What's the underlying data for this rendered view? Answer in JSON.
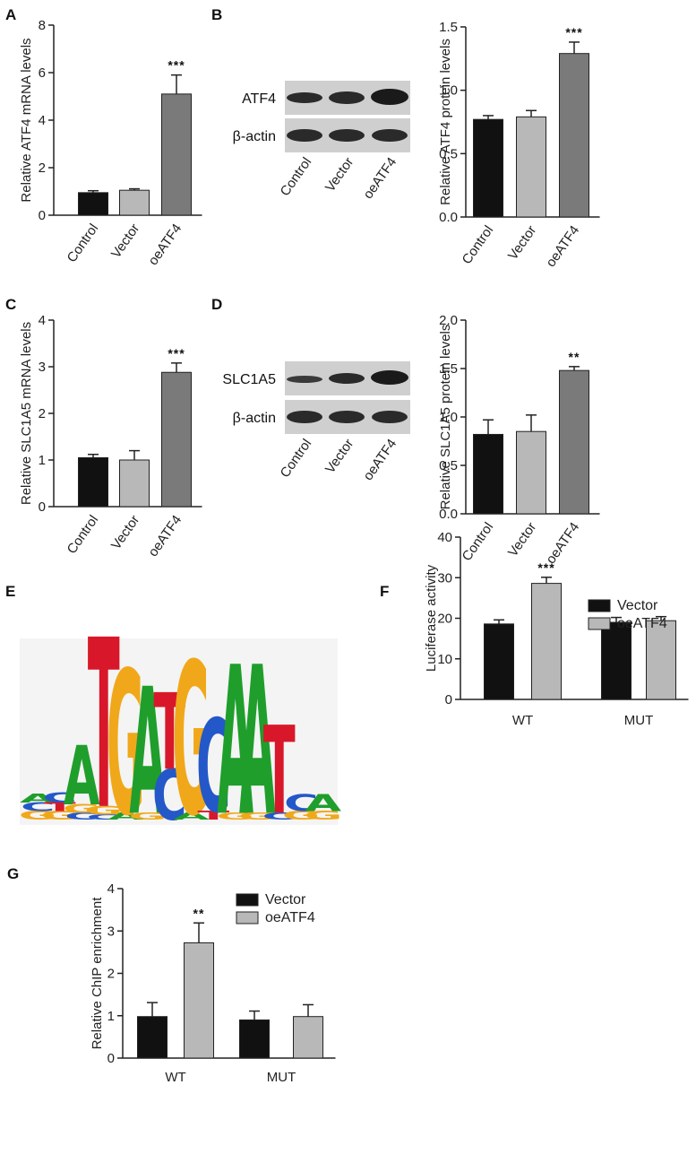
{
  "colors": {
    "black": "#111111",
    "light": "#b8b8b8",
    "dark": "#7a7a7a",
    "axis": "#222222"
  },
  "panels": {
    "A": {
      "label": "A"
    },
    "B": {
      "label": "B"
    },
    "C": {
      "label": "C"
    },
    "D": {
      "label": "D"
    },
    "E": {
      "label": "E"
    },
    "F": {
      "label": "F"
    },
    "G": {
      "label": "G"
    }
  },
  "blots": {
    "B": {
      "rows": [
        "ATF4",
        "β-actin"
      ],
      "lanes": [
        "Control",
        "Vector",
        "oeATF4"
      ]
    },
    "D": {
      "rows": [
        "SLC1A5",
        "β-actin"
      ],
      "lanes": [
        "Control",
        "Vector",
        "oeATF4"
      ]
    }
  },
  "motif": {
    "letters": [
      {
        "pos": 1,
        "stack": [
          {
            "l": "G",
            "h": 0.05
          },
          {
            "l": "C",
            "h": 0.05
          },
          {
            "l": "A",
            "h": 0.05
          }
        ]
      },
      {
        "pos": 2,
        "stack": [
          {
            "l": "G",
            "h": 0.05
          },
          {
            "l": "T",
            "h": 0.05
          },
          {
            "l": "C",
            "h": 0.06
          }
        ]
      },
      {
        "pos": 3,
        "stack": [
          {
            "l": "C",
            "h": 0.04
          },
          {
            "l": "G",
            "h": 0.05
          },
          {
            "l": "A",
            "h": 0.35
          }
        ]
      },
      {
        "pos": 4,
        "stack": [
          {
            "l": "C",
            "h": 0.03
          },
          {
            "l": "G",
            "h": 0.05
          },
          {
            "l": "T",
            "h": 1.0
          }
        ]
      },
      {
        "pos": 5,
        "stack": [
          {
            "l": "A",
            "h": 0.04
          },
          {
            "l": "G",
            "h": 0.85
          }
        ]
      },
      {
        "pos": 6,
        "stack": [
          {
            "l": "G",
            "h": 0.04
          },
          {
            "l": "A",
            "h": 0.75
          }
        ]
      },
      {
        "pos": 7,
        "stack": [
          {
            "l": "C",
            "h": 0.3
          },
          {
            "l": "T",
            "h": 0.45
          }
        ]
      },
      {
        "pos": 8,
        "stack": [
          {
            "l": "A",
            "h": 0.04
          },
          {
            "l": "G",
            "h": 0.9
          }
        ]
      },
      {
        "pos": 9,
        "stack": [
          {
            "l": "T",
            "h": 0.05
          },
          {
            "l": "C",
            "h": 0.55
          }
        ]
      },
      {
        "pos": 10,
        "stack": [
          {
            "l": "G",
            "h": 0.04
          },
          {
            "l": "A",
            "h": 0.88
          }
        ]
      },
      {
        "pos": 11,
        "stack": [
          {
            "l": "G",
            "h": 0.04
          },
          {
            "l": "A",
            "h": 0.88
          }
        ]
      },
      {
        "pos": 12,
        "stack": [
          {
            "l": "C",
            "h": 0.04
          },
          {
            "l": "T",
            "h": 0.52
          }
        ]
      },
      {
        "pos": 13,
        "stack": [
          {
            "l": "G",
            "h": 0.05
          },
          {
            "l": "C",
            "h": 0.1
          }
        ]
      },
      {
        "pos": 14,
        "stack": [
          {
            "l": "G",
            "h": 0.05
          },
          {
            "l": "A",
            "h": 0.1
          }
        ]
      }
    ]
  },
  "chart_data": [
    {
      "id": "A",
      "type": "bar",
      "categories": [
        "Control",
        "Vector",
        "oeATF4"
      ],
      "values": [
        0.95,
        1.05,
        5.1
      ],
      "errors": [
        0.08,
        0.06,
        0.8
      ],
      "sig": [
        "",
        "",
        "***"
      ],
      "ylim": [
        0,
        8
      ],
      "yticks": [
        0,
        2,
        4,
        6,
        8
      ],
      "ylabel": "Relative ATF4 mRNA levels",
      "xlabel": "",
      "title": ""
    },
    {
      "id": "B",
      "type": "bar",
      "categories": [
        "Control",
        "Vector",
        "oeATF4"
      ],
      "values": [
        0.77,
        0.79,
        1.29
      ],
      "errors": [
        0.03,
        0.05,
        0.09
      ],
      "sig": [
        "",
        "",
        "***"
      ],
      "ylim": [
        0,
        1.5
      ],
      "yticks": [
        "0.0",
        "0.5",
        "1.0",
        "1.5"
      ],
      "ylabel": "Relative ATF4 protein levels",
      "xlabel": "",
      "title": ""
    },
    {
      "id": "C",
      "type": "bar",
      "categories": [
        "Control",
        "Vector",
        "oeATF4"
      ],
      "values": [
        1.05,
        1.0,
        2.88
      ],
      "errors": [
        0.07,
        0.2,
        0.2
      ],
      "sig": [
        "",
        "",
        "***"
      ],
      "ylim": [
        0,
        4
      ],
      "yticks": [
        0,
        1,
        2,
        3,
        4
      ],
      "ylabel": "Relative SLC1A5 mRNA levels",
      "xlabel": "",
      "title": ""
    },
    {
      "id": "D",
      "type": "bar",
      "categories": [
        "Control",
        "Vector",
        "oeATF4"
      ],
      "values": [
        0.82,
        0.85,
        1.48
      ],
      "errors": [
        0.15,
        0.17,
        0.04
      ],
      "sig": [
        "",
        "",
        "**"
      ],
      "ylim": [
        0,
        2.0
      ],
      "yticks": [
        "0.0",
        "0.5",
        "1.0",
        "1.5",
        "2.0"
      ],
      "ylabel": "Relative SLC1A5 protein levels",
      "xlabel": "",
      "title": ""
    },
    {
      "id": "F",
      "type": "bar",
      "categories": [
        "WT",
        "MUT"
      ],
      "series": [
        {
          "name": "Vector",
          "values": [
            18.6,
            19.0
          ],
          "errors": [
            1.0,
            1.2
          ]
        },
        {
          "name": "oeATF4",
          "values": [
            28.6,
            19.4
          ],
          "errors": [
            1.5,
            1.0
          ]
        }
      ],
      "sig": [
        [
          "",
          "***"
        ],
        [
          "",
          ""
        ]
      ],
      "ylim": [
        0,
        40
      ],
      "yticks": [
        0,
        10,
        20,
        30,
        40
      ],
      "ylabel": "Luciferase activity",
      "xlabel": "",
      "title": "",
      "legend": "top-right"
    },
    {
      "id": "G",
      "type": "bar",
      "categories": [
        "WT",
        "MUT"
      ],
      "series": [
        {
          "name": "Vector",
          "values": [
            0.98,
            0.9
          ],
          "errors": [
            0.33,
            0.21
          ]
        },
        {
          "name": "oeATF4",
          "values": [
            2.72,
            0.98
          ],
          "errors": [
            0.47,
            0.28
          ]
        }
      ],
      "sig": [
        [
          "",
          "**"
        ],
        [
          "",
          ""
        ]
      ],
      "ylim": [
        0,
        4
      ],
      "yticks": [
        0,
        1,
        2,
        3,
        4
      ],
      "ylabel": "Relative ChIP enrichment",
      "xlabel": "",
      "title": "",
      "legend": "top-right"
    }
  ]
}
